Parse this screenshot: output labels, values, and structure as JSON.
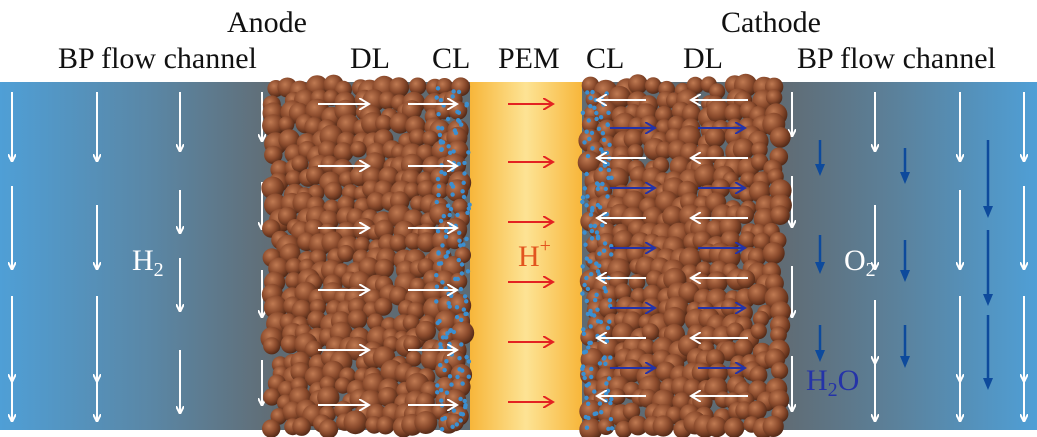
{
  "labels": {
    "anode": "Anode",
    "cathode": "Cathode",
    "bp_left": "BP flow channel",
    "dl_left": "DL",
    "cl_left": "CL",
    "pem": "PEM",
    "cl_right": "CL",
    "dl_right": "DL",
    "bp_right": "BP flow channel"
  },
  "species": {
    "hydrogen": {
      "symbol": "H",
      "subscript": "2"
    },
    "proton": {
      "symbol": "H",
      "superscript": "+"
    },
    "oxygen": {
      "symbol": "O",
      "subscript": "2"
    },
    "water": {
      "symbol": "H",
      "subscript": "2",
      "suffix": "O"
    }
  },
  "colors": {
    "channel_blue": "#4f9fd6",
    "channel_gray": "#5f6b73",
    "membrane": "#f7c84e",
    "particle": "#8a4a2c",
    "flow_arrow": "#ffffff",
    "proton_arrow": "#e32222",
    "water_arrow": "#2433a8",
    "oxygen_arrow": "#0d4a9c",
    "catalyst_dot": "#3c8fd0"
  }
}
